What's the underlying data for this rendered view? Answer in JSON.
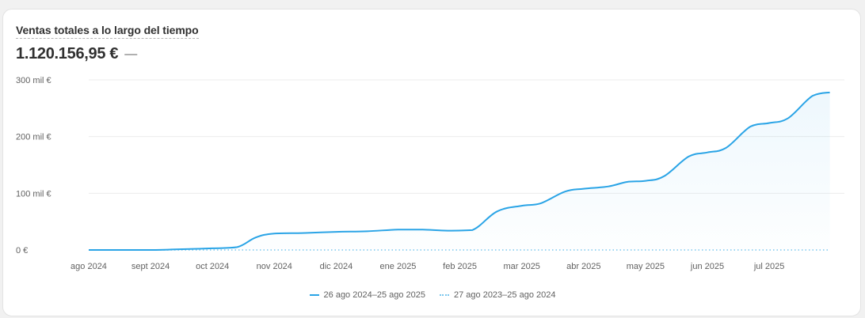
{
  "card": {
    "title": "Ventas totales a lo largo del tiempo",
    "total_value": "1.120.156,95 €",
    "delta": "—"
  },
  "chart_data": {
    "type": "line",
    "title": "Ventas totales a lo largo del tiempo",
    "x_categories": [
      "ago 2024",
      "sept 2024",
      "oct 2024",
      "nov 2024",
      "dic 2024",
      "ene 2025",
      "feb 2025",
      "mar 2025",
      "abr 2025",
      "may 2025",
      "jun 2025",
      "jul 2025"
    ],
    "y_ticks": [
      {
        "value": 0,
        "label": "0 €"
      },
      {
        "value": 100000,
        "label": "100 mil €"
      },
      {
        "value": 200000,
        "label": "200 mil €"
      },
      {
        "value": 300000,
        "label": "300 mil €"
      }
    ],
    "ylim": [
      0,
      300000
    ],
    "grid": true,
    "legend_position": "bottom",
    "series": [
      {
        "name": "26 ago 2024–25 ago 2025",
        "style": "solid",
        "color": "#2aa4e6",
        "points": [
          [
            0,
            0
          ],
          [
            1,
            0
          ],
          [
            1.4,
            1000
          ],
          [
            2,
            3000
          ],
          [
            2.4,
            5000
          ],
          [
            2.7,
            22000
          ],
          [
            3,
            29000
          ],
          [
            3.5,
            30000
          ],
          [
            4,
            32000
          ],
          [
            4.5,
            33000
          ],
          [
            5,
            36000
          ],
          [
            5.4,
            36000
          ],
          [
            5.8,
            34000
          ],
          [
            6.2,
            35000
          ],
          [
            6.6,
            68000
          ],
          [
            7,
            78000
          ],
          [
            7.3,
            82000
          ],
          [
            7.7,
            103000
          ],
          [
            8,
            108000
          ],
          [
            8.4,
            112000
          ],
          [
            8.7,
            120000
          ],
          [
            9,
            122000
          ],
          [
            9.3,
            130000
          ],
          [
            9.7,
            165000
          ],
          [
            10,
            172000
          ],
          [
            10.3,
            180000
          ],
          [
            10.7,
            218000
          ],
          [
            11,
            224000
          ],
          [
            11.3,
            232000
          ],
          [
            11.7,
            272000
          ],
          [
            11.98,
            278000
          ]
        ]
      },
      {
        "name": "27 ago 2023–25 ago 2024",
        "style": "dotted",
        "color": "#7cc7ee",
        "points": [
          [
            0,
            0
          ],
          [
            11.98,
            0
          ]
        ]
      }
    ]
  }
}
